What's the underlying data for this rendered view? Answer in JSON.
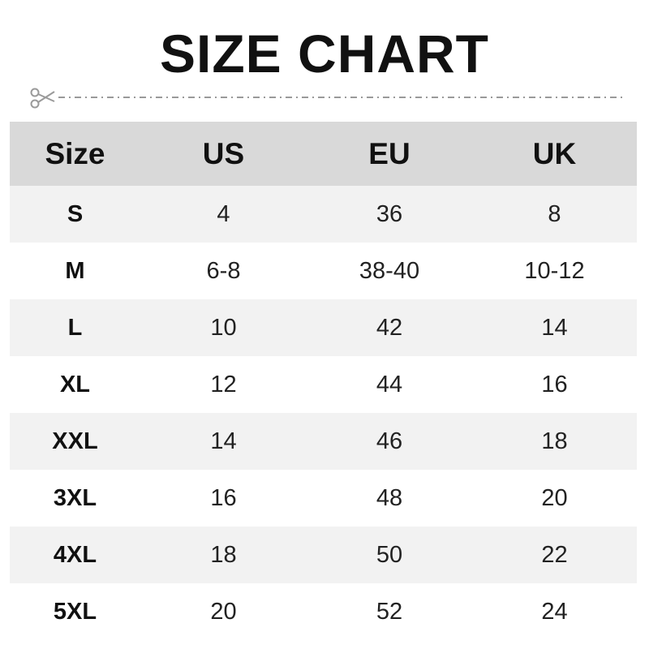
{
  "title": "SIZE CHART",
  "colors": {
    "header_bg": "#d9d9d9",
    "stripe_bg": "#f2f2f2",
    "cut_line": "#9a9a9a"
  },
  "icons": {
    "cut_line": "scissors-icon"
  },
  "chart_data": {
    "type": "table",
    "title": "SIZE CHART",
    "columns": [
      "Size",
      "US",
      "EU",
      "UK"
    ],
    "rows": [
      [
        "S",
        "4",
        "36",
        "8"
      ],
      [
        "M",
        "6-8",
        "38-40",
        "10-12"
      ],
      [
        "L",
        "10",
        "42",
        "14"
      ],
      [
        "XL",
        "12",
        "44",
        "16"
      ],
      [
        "XXL",
        "14",
        "46",
        "18"
      ],
      [
        "3XL",
        "16",
        "48",
        "20"
      ],
      [
        "4XL",
        "18",
        "50",
        "22"
      ],
      [
        "5XL",
        "20",
        "52",
        "24"
      ]
    ]
  }
}
